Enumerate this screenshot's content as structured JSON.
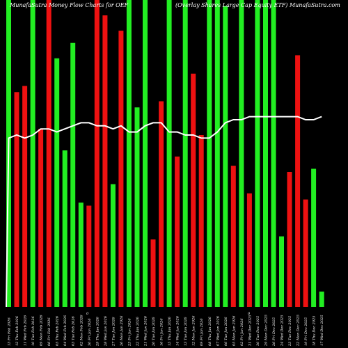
{
  "chart_data": {
    "type": "bar",
    "title_left": "MunafaSutra  Money  Flow  Charts for OEF",
    "title_right": "(Overlay Shares Large Cap Equity ETF) MunafaSutra.com",
    "colors": {
      "up": "#22ee22",
      "down": "#ee1111",
      "line": "#ffffff",
      "background": "#000000"
    },
    "grid": false,
    "legend": "none",
    "ylim": [
      0,
      100
    ],
    "pct_label": "0",
    "categories": [
      "13 Fri Feb 2026",
      "12 Thu Feb 2026",
      "11 Wed Feb 2026",
      "10 Tue Feb 2026",
      "09 Mon Feb 2026",
      "06 Fri Feb 2026",
      "05 Thu Feb 2026",
      "04 Wed Feb 2026",
      "03 Tue Feb 2026",
      "02 Mon Feb 2026",
      "30 Fri Jan 2026",
      "29 Thu Jan 2026",
      "28 Wed Jan 2026",
      "27 Tue Jan 2026",
      "26 Mon Jan 2026",
      "23 Fri Jan 2026",
      "22 Thu Jan 2026",
      "21 Wed Jan 2026",
      "20 Tue Jan 2026",
      "16 Fri Jan 2026",
      "15 Thu Jan 2026",
      "14 Wed Jan 2026",
      "13 Tue Jan 2026",
      "12 Mon Jan 2026",
      "09 Fri Jan 2026",
      "08 Thu Jan 2026",
      "07 Wed Jan 2026",
      "06 Tue Jan 2026",
      "05 Mon Jan 2026",
      "02 Fri Jan 2026",
      "31 Wed Dec 2025",
      "30 Tue Dec 2025",
      "29 Mon Dec 2025",
      "26 Fri Dec 2025",
      "24 Wed Dec 2025",
      "23 Tue Dec 2025",
      "22 Mon Dec 2025",
      "19 Fri Dec 2025",
      "18 Thu Dec 2025",
      "17 Wed Dec 2025"
    ],
    "bar_values": [
      100,
      70,
      72,
      100,
      58,
      100,
      81,
      51,
      86,
      34,
      33,
      100,
      95,
      40,
      90,
      100,
      65,
      100,
      22,
      67,
      100,
      49,
      100,
      76,
      56,
      100,
      100,
      98,
      46,
      100,
      37,
      100,
      100,
      100,
      23,
      44,
      82,
      35,
      45,
      5
    ],
    "bar_colors": [
      "g",
      "r",
      "r",
      "g",
      "r",
      "r",
      "g",
      "g",
      "g",
      "g",
      "r",
      "r",
      "r",
      "g",
      "r",
      "g",
      "g",
      "g",
      "r",
      "r",
      "g",
      "r",
      "g",
      "r",
      "r",
      "g",
      "g",
      "g",
      "r",
      "g",
      "r",
      "g",
      "g",
      "g",
      "g",
      "r",
      "r",
      "r",
      "g",
      "g"
    ],
    "line_values": [
      55,
      56,
      55,
      56,
      58,
      58,
      57,
      58,
      59,
      60,
      60,
      59,
      59,
      58,
      59,
      57,
      57,
      59,
      60,
      60,
      57,
      57,
      56,
      56,
      55,
      55,
      57,
      60,
      61,
      61,
      62,
      62,
      62,
      62,
      62,
      62,
      62,
      61,
      61,
      62
    ]
  }
}
